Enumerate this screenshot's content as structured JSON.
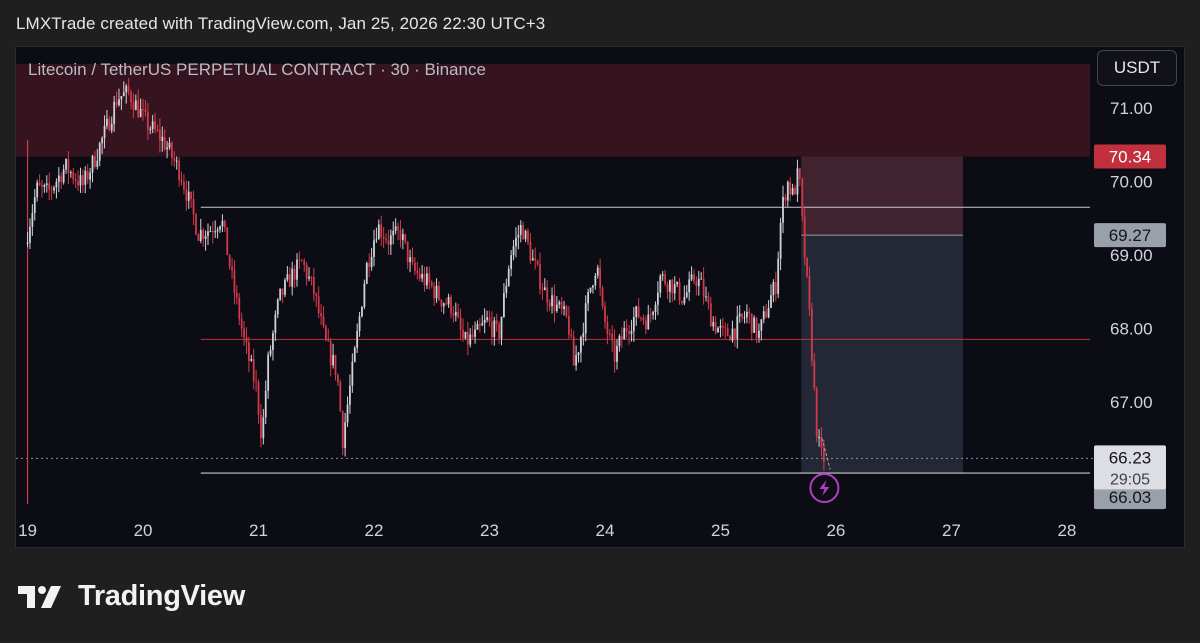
{
  "header": {
    "text": "LMXTrade created with TradingView.com, Jan 25, 2026 22:30 UTC+3"
  },
  "toolbar": {
    "currency": "USDT"
  },
  "footer": {
    "brand": "TradingView"
  },
  "colors": {
    "up": "#cfd2da",
    "down": "#d23a4a",
    "supply_zone": "#3a1520",
    "level_line": "#c8c8d0",
    "mid_line": "#c0303c",
    "short_stop": "#4a2832",
    "short_target": "#262a38"
  },
  "chart_data": {
    "type": "candlestick",
    "title": "Litecoin / TetherUS PERPETUAL CONTRACT · 30 · Binance",
    "xlabel": "",
    "ylabel": "",
    "x_ticks": [
      "19",
      "20",
      "21",
      "22",
      "23",
      "24",
      "25",
      "26",
      "27",
      "28"
    ],
    "x_range": [
      18.9,
      28.2
    ],
    "y_ticks": [
      "71.00",
      "70.00",
      "69.00",
      "68.00",
      "67.00"
    ],
    "y_range": [
      65.5,
      71.6
    ],
    "grid": false,
    "candle_interval_days": 0.0208333,
    "price_path": [
      {
        "t": 19.0,
        "p": 69.15
      },
      {
        "t": 19.1,
        "p": 69.9
      },
      {
        "t": 19.2,
        "p": 69.85
      },
      {
        "t": 19.35,
        "p": 70.2
      },
      {
        "t": 19.5,
        "p": 69.95
      },
      {
        "t": 19.6,
        "p": 70.3
      },
      {
        "t": 19.7,
        "p": 70.7
      },
      {
        "t": 19.8,
        "p": 71.15
      },
      {
        "t": 19.9,
        "p": 71.2
      },
      {
        "t": 20.05,
        "p": 70.8
      },
      {
        "t": 20.2,
        "p": 70.55
      },
      {
        "t": 20.35,
        "p": 70.1
      },
      {
        "t": 20.5,
        "p": 69.3
      },
      {
        "t": 20.6,
        "p": 69.35
      },
      {
        "t": 20.7,
        "p": 69.5
      },
      {
        "t": 20.8,
        "p": 68.6
      },
      {
        "t": 20.9,
        "p": 67.8
      },
      {
        "t": 21.0,
        "p": 67.2
      },
      {
        "t": 21.05,
        "p": 66.5
      },
      {
        "t": 21.1,
        "p": 67.5
      },
      {
        "t": 21.2,
        "p": 68.4
      },
      {
        "t": 21.3,
        "p": 68.7
      },
      {
        "t": 21.4,
        "p": 68.9
      },
      {
        "t": 21.5,
        "p": 68.5
      },
      {
        "t": 21.6,
        "p": 67.8
      },
      {
        "t": 21.7,
        "p": 67.4
      },
      {
        "t": 21.75,
        "p": 66.5
      },
      {
        "t": 21.85,
        "p": 67.6
      },
      {
        "t": 21.95,
        "p": 68.8
      },
      {
        "t": 22.05,
        "p": 69.4
      },
      {
        "t": 22.15,
        "p": 69.2
      },
      {
        "t": 22.25,
        "p": 69.3
      },
      {
        "t": 22.35,
        "p": 68.8
      },
      {
        "t": 22.5,
        "p": 68.6
      },
      {
        "t": 22.6,
        "p": 68.4
      },
      {
        "t": 22.7,
        "p": 68.3
      },
      {
        "t": 22.8,
        "p": 67.8
      },
      {
        "t": 22.9,
        "p": 67.9
      },
      {
        "t": 23.0,
        "p": 68.1
      },
      {
        "t": 23.1,
        "p": 67.9
      },
      {
        "t": 23.2,
        "p": 69.0
      },
      {
        "t": 23.3,
        "p": 69.4
      },
      {
        "t": 23.4,
        "p": 68.9
      },
      {
        "t": 23.5,
        "p": 68.5
      },
      {
        "t": 23.6,
        "p": 68.3
      },
      {
        "t": 23.7,
        "p": 68.1
      },
      {
        "t": 23.75,
        "p": 67.5
      },
      {
        "t": 23.8,
        "p": 67.8
      },
      {
        "t": 23.9,
        "p": 68.6
      },
      {
        "t": 23.95,
        "p": 68.9
      },
      {
        "t": 24.0,
        "p": 68.2
      },
      {
        "t": 24.1,
        "p": 67.6
      },
      {
        "t": 24.2,
        "p": 68.0
      },
      {
        "t": 24.3,
        "p": 68.2
      },
      {
        "t": 24.4,
        "p": 68.1
      },
      {
        "t": 24.5,
        "p": 68.7
      },
      {
        "t": 24.6,
        "p": 68.6
      },
      {
        "t": 24.7,
        "p": 68.4
      },
      {
        "t": 24.8,
        "p": 68.7
      },
      {
        "t": 24.85,
        "p": 68.6
      },
      {
        "t": 24.95,
        "p": 68.1
      },
      {
        "t": 25.05,
        "p": 67.9
      },
      {
        "t": 25.15,
        "p": 68.0
      },
      {
        "t": 25.25,
        "p": 68.2
      },
      {
        "t": 25.35,
        "p": 67.9
      },
      {
        "t": 25.45,
        "p": 68.4
      },
      {
        "t": 25.5,
        "p": 68.6
      },
      {
        "t": 25.55,
        "p": 69.6
      },
      {
        "t": 25.6,
        "p": 70.0
      },
      {
        "t": 25.65,
        "p": 69.8
      },
      {
        "t": 25.7,
        "p": 70.15
      },
      {
        "t": 25.73,
        "p": 69.4
      },
      {
        "t": 25.77,
        "p": 68.6
      },
      {
        "t": 25.8,
        "p": 68.0
      },
      {
        "t": 25.83,
        "p": 67.2
      },
      {
        "t": 25.86,
        "p": 66.5
      },
      {
        "t": 25.9,
        "p": 66.23
      }
    ],
    "current_price": {
      "value": 66.23,
      "countdown": "29:05"
    },
    "price_labels": [
      {
        "value": 70.34,
        "text": "70.34",
        "style": "red"
      },
      {
        "value": 69.27,
        "text": "69.27",
        "style": "gray"
      },
      {
        "value": 66.03,
        "text": "66.03",
        "style": "gray"
      }
    ],
    "annotations": {
      "supply_zone": {
        "x_start": 18.9,
        "x_end": 28.2,
        "y_low": 70.34,
        "y_high": 71.6
      },
      "resistance_level": {
        "x_start": 20.5,
        "x_end": 28.2,
        "value": 69.65
      },
      "mid_level": {
        "x_start": 20.5,
        "x_end": 28.2,
        "value": 67.85
      },
      "support_level": {
        "x_start": 20.5,
        "x_end": 28.2,
        "value": 66.03
      },
      "short_position": {
        "x_start": 25.7,
        "x_end": 27.1,
        "entry": 69.27,
        "stop": 70.34,
        "target": 66.03
      },
      "vertical_marker_date": 19.0
    }
  }
}
